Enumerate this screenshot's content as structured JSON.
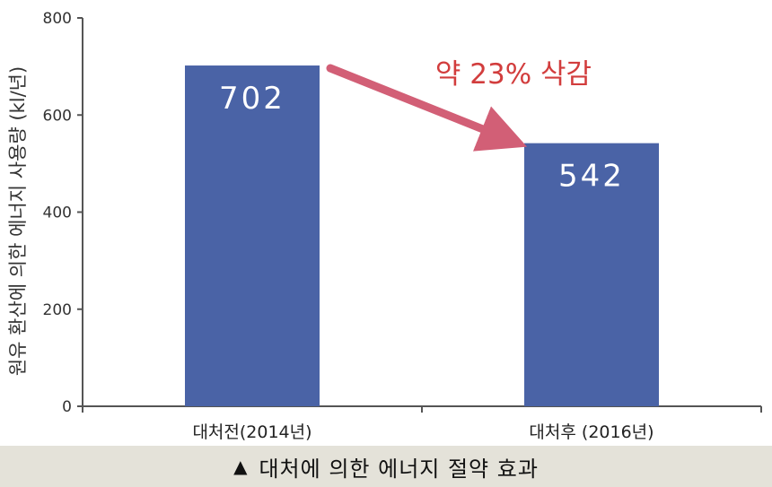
{
  "chart_data": {
    "type": "bar",
    "categories": [
      "대처전(2014년)",
      "대처후 (2016년)"
    ],
    "values": [
      702,
      542
    ],
    "data_labels": [
      "702",
      "542"
    ],
    "ylabel": "원유 환산에 의한 에너지 사용량 (kl/년)",
    "ylim": [
      0,
      800
    ],
    "yticks": [
      0,
      200,
      400,
      600,
      800
    ],
    "annotation": "약 23% 삭감",
    "grid": false,
    "legend": "none"
  },
  "colors": {
    "bar": "#4a63a6",
    "arrow": "#d25f76",
    "annotation_text": "#d23d3d",
    "axis": "#555555",
    "caption_bg": "#e4e2d9"
  },
  "caption": {
    "marker": "▲",
    "text": "대처에 의한 에너지 절약 효과"
  }
}
